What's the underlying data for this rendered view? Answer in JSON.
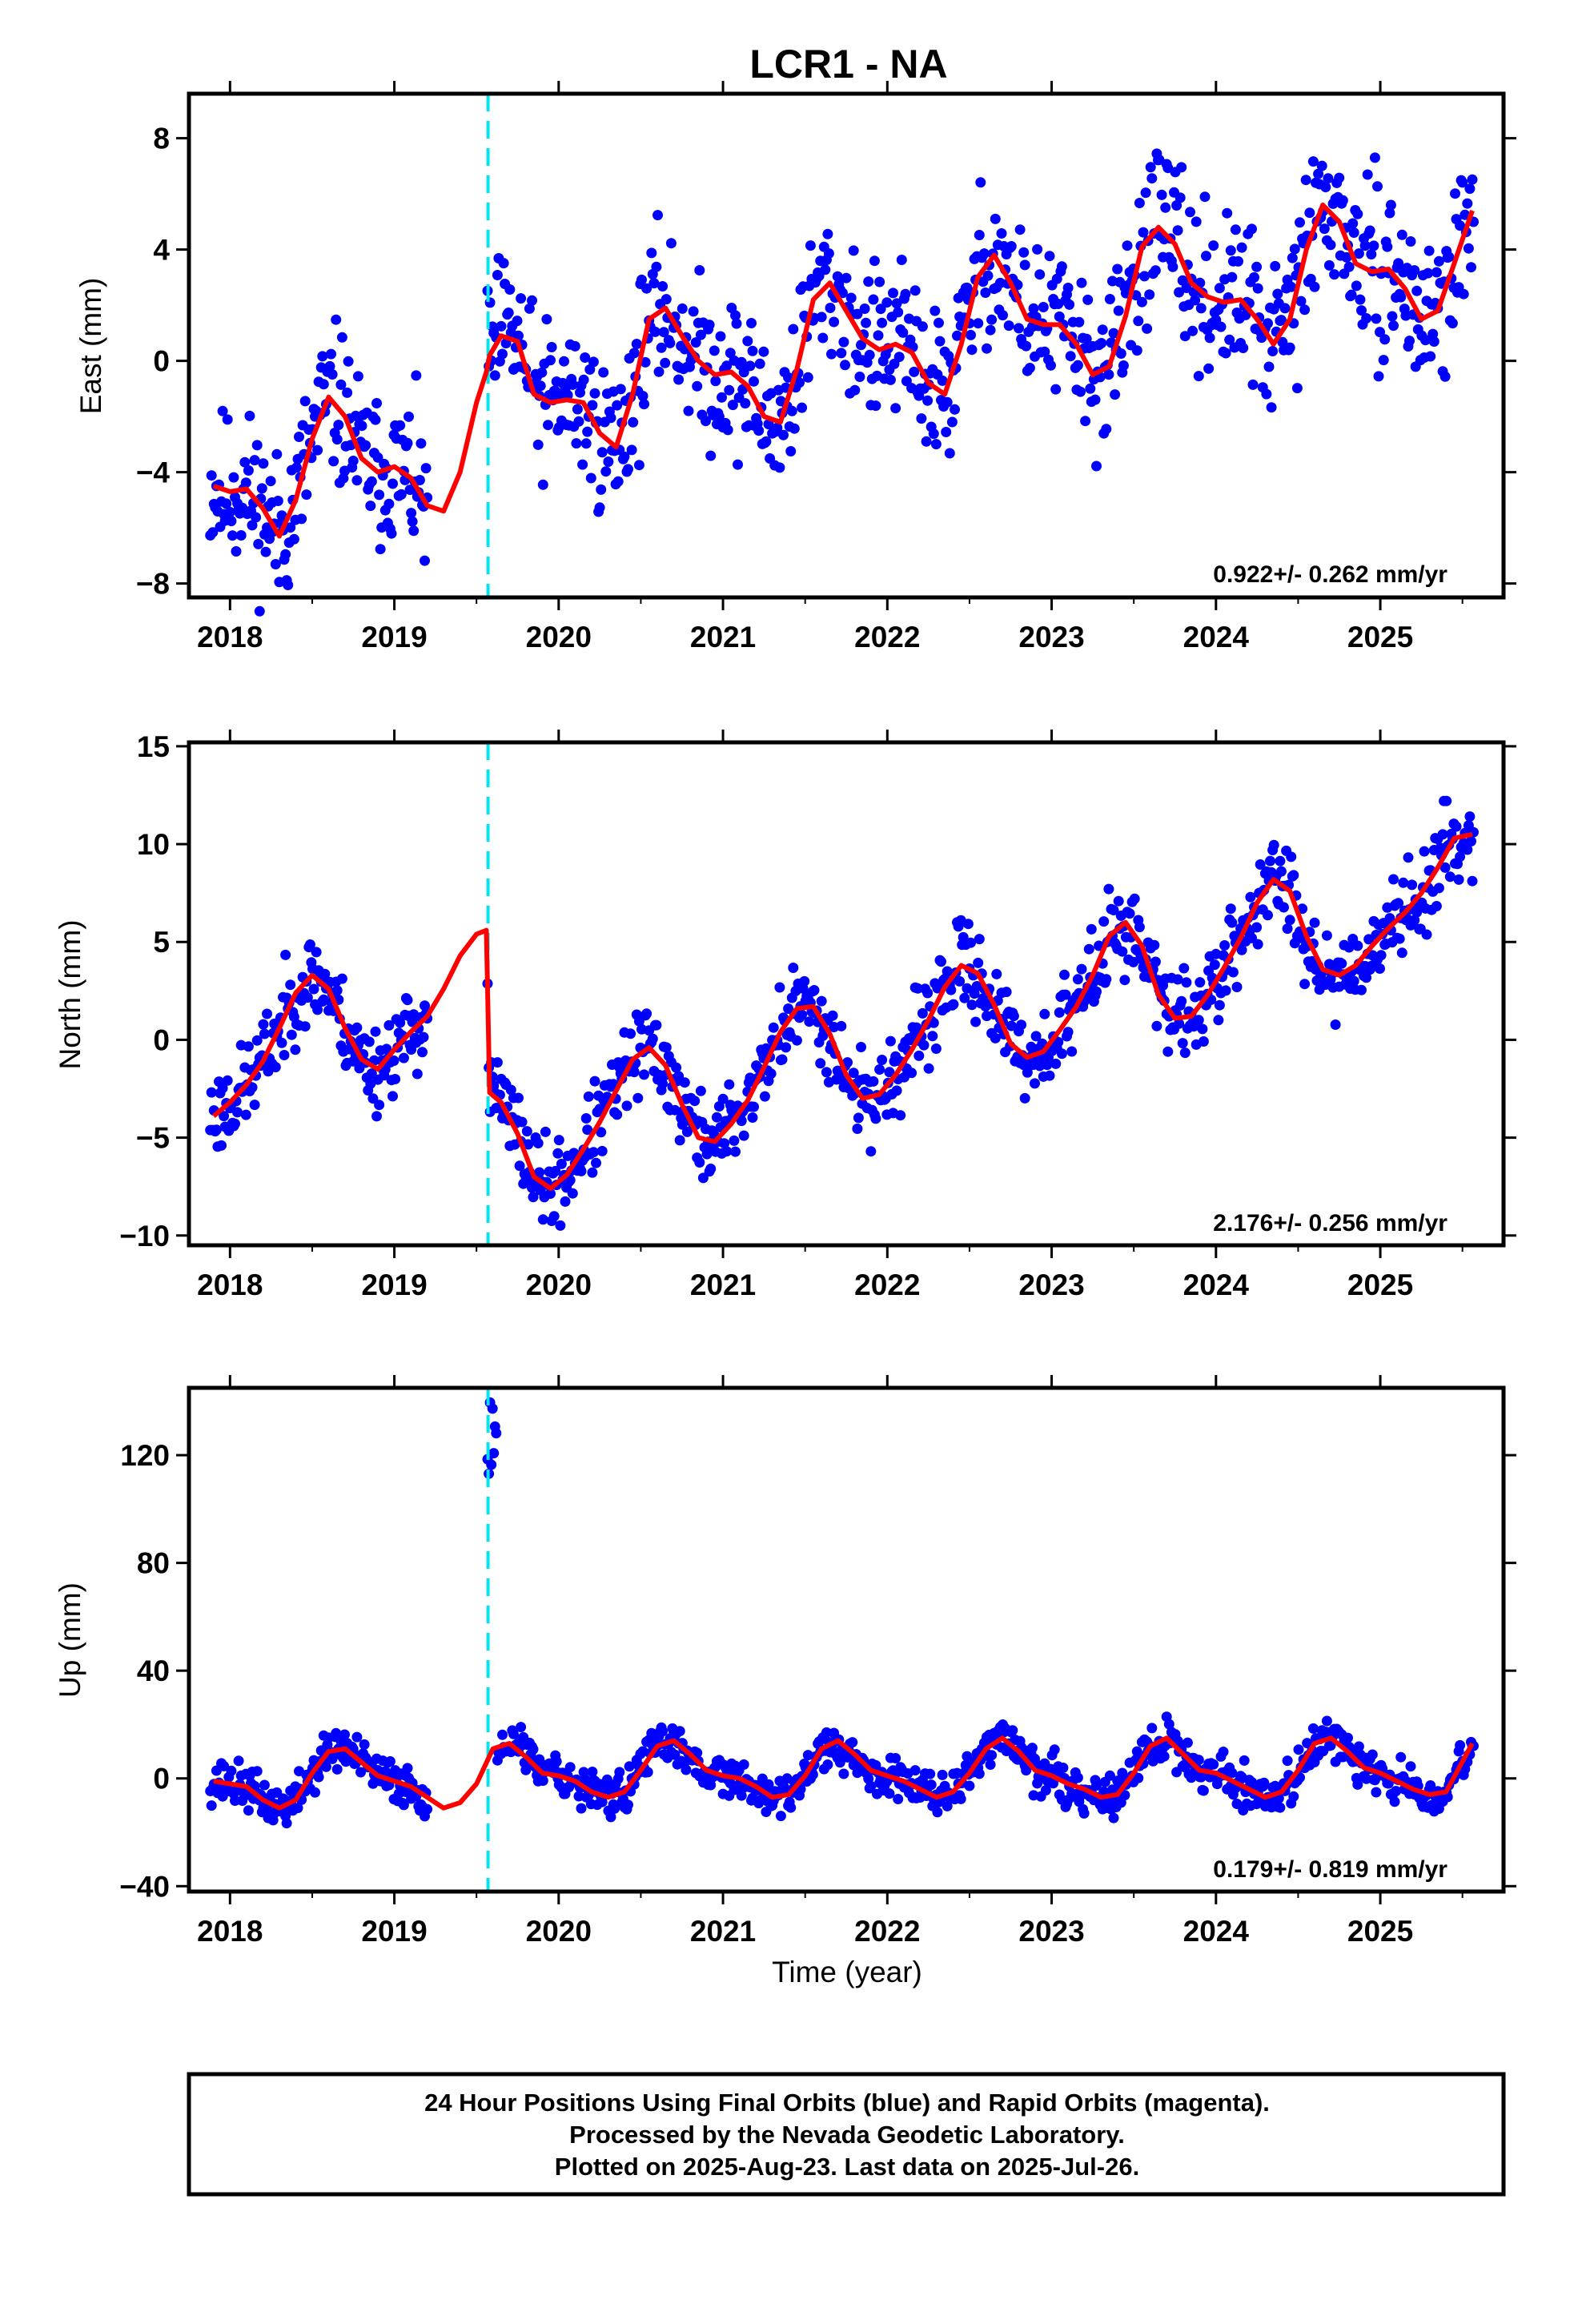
{
  "title": "LCR1 - NA",
  "xlabel": "Time (year)",
  "colors": {
    "points": "#0000ff",
    "fit": "#ff0000",
    "offset": "#00e5ee",
    "frame": "#000000"
  },
  "chart_data": [
    {
      "type": "scatter",
      "ylabel": "East (mm)",
      "rate": "0.922+/- 0.262 mm/yr",
      "xlim": [
        2017.75,
        2025.75
      ],
      "ylim": [
        -8.5,
        9.6
      ],
      "xticks": [
        "2018",
        "2019",
        "2020",
        "2021",
        "2022",
        "2023",
        "2024",
        "2025"
      ],
      "yticks": [
        "8",
        "4",
        "0",
        "−4",
        "−8"
      ],
      "offset_year": 2019.57,
      "fit": {
        "x": [
          2017.9,
          2018.0,
          2018.1,
          2018.2,
          2018.3,
          2018.4,
          2018.5,
          2018.6,
          2018.7,
          2018.8,
          2018.9,
          2019.0,
          2019.1,
          2019.2,
          2019.3,
          2019.4,
          2019.5,
          2019.56,
          2019.58,
          2019.65,
          2019.75,
          2019.85,
          2019.95,
          2020.05,
          2020.15,
          2020.25,
          2020.35,
          2020.45,
          2020.55,
          2020.65,
          2020.75,
          2020.85,
          2020.95,
          2021.05,
          2021.15,
          2021.25,
          2021.35,
          2021.45,
          2021.55,
          2021.65,
          2021.75,
          2021.85,
          2021.95,
          2022.05,
          2022.15,
          2022.25,
          2022.35,
          2022.45,
          2022.55,
          2022.65,
          2022.75,
          2022.85,
          2022.95,
          2023.05,
          2023.15,
          2023.25,
          2023.35,
          2023.45,
          2023.55,
          2023.65,
          2023.75,
          2023.85,
          2023.95,
          2024.05,
          2024.15,
          2024.25,
          2024.35,
          2024.45,
          2024.55,
          2024.65,
          2024.75,
          2024.85,
          2024.95,
          2025.05,
          2025.15,
          2025.25,
          2025.35,
          2025.45,
          2025.56
        ],
        "y": [
          -4.5,
          -4.7,
          -4.6,
          -5.3,
          -6.3,
          -5.0,
          -2.8,
          -1.3,
          -2.0,
          -3.5,
          -4.0,
          -3.8,
          -4.2,
          -5.2,
          -5.4,
          -4.0,
          -1.5,
          -0.4,
          0.2,
          0.9,
          0.7,
          -1.2,
          -1.5,
          -1.4,
          -1.5,
          -2.6,
          -3.1,
          -1.2,
          1.5,
          1.9,
          0.9,
          0.0,
          -0.5,
          -0.4,
          -0.9,
          -2.0,
          -2.2,
          -0.3,
          2.2,
          2.8,
          1.8,
          0.8,
          0.4,
          0.6,
          0.3,
          -0.8,
          -1.2,
          0.6,
          3.0,
          3.8,
          2.8,
          1.5,
          1.3,
          1.3,
          0.6,
          -0.5,
          -0.2,
          1.6,
          4.1,
          4.8,
          4.2,
          2.8,
          2.3,
          2.1,
          2.2,
          1.5,
          0.6,
          1.5,
          4.0,
          5.6,
          5.0,
          3.5,
          3.2,
          3.3,
          2.6,
          1.5,
          1.8,
          3.5,
          5.4
        ]
      }
    },
    {
      "type": "scatter",
      "ylabel": "North (mm)",
      "rate": "2.176+/- 0.256 mm/yr",
      "xlim": [
        2017.75,
        2025.75
      ],
      "ylim": [
        -10.5,
        15.2
      ],
      "xticks": [
        "2018",
        "2019",
        "2020",
        "2021",
        "2022",
        "2023",
        "2024",
        "2025"
      ],
      "yticks": [
        "15",
        "10",
        "5",
        "0",
        "−5",
        "−10"
      ],
      "offset_year": 2019.57,
      "fit": {
        "x": [
          2017.9,
          2018.0,
          2018.1,
          2018.2,
          2018.3,
          2018.4,
          2018.5,
          2018.6,
          2018.7,
          2018.8,
          2018.9,
          2019.0,
          2019.1,
          2019.2,
          2019.3,
          2019.4,
          2019.5,
          2019.56,
          2019.58,
          2019.65,
          2019.75,
          2019.85,
          2019.95,
          2020.05,
          2020.15,
          2020.25,
          2020.35,
          2020.45,
          2020.55,
          2020.65,
          2020.75,
          2020.85,
          2020.95,
          2021.05,
          2021.15,
          2021.25,
          2021.35,
          2021.45,
          2021.55,
          2021.65,
          2021.75,
          2021.85,
          2021.95,
          2022.05,
          2022.15,
          2022.25,
          2022.35,
          2022.45,
          2022.55,
          2022.65,
          2022.75,
          2022.85,
          2022.95,
          2023.05,
          2023.15,
          2023.25,
          2023.35,
          2023.45,
          2023.55,
          2023.65,
          2023.75,
          2023.85,
          2023.95,
          2024.05,
          2024.15,
          2024.25,
          2024.35,
          2024.45,
          2024.55,
          2024.65,
          2024.75,
          2024.85,
          2024.95,
          2025.05,
          2025.15,
          2025.25,
          2025.35,
          2025.45,
          2025.56
        ],
        "y": [
          -3.9,
          -3.2,
          -2.3,
          -1.1,
          0.6,
          2.4,
          3.3,
          2.6,
          0.6,
          -1.0,
          -1.5,
          -0.5,
          0.4,
          1.2,
          2.6,
          4.3,
          5.4,
          5.6,
          -2.7,
          -3.2,
          -4.8,
          -7.0,
          -7.6,
          -6.9,
          -5.6,
          -4.2,
          -2.6,
          -1.0,
          -0.4,
          -1.3,
          -3.3,
          -5.0,
          -5.2,
          -4.3,
          -3.1,
          -1.4,
          0.4,
          1.6,
          1.7,
          0.3,
          -1.8,
          -3.0,
          -2.8,
          -1.8,
          -0.5,
          1.0,
          2.7,
          3.8,
          3.4,
          1.8,
          -0.2,
          -0.9,
          -0.6,
          0.5,
          1.7,
          3.3,
          5.3,
          6.0,
          4.8,
          2.3,
          1.1,
          1.2,
          2.3,
          3.7,
          5.2,
          7.0,
          8.2,
          7.6,
          5.3,
          3.6,
          3.3,
          3.8,
          4.8,
          5.7,
          6.5,
          7.5,
          8.8,
          10.3,
          10.5
        ]
      }
    },
    {
      "type": "scatter",
      "ylabel": "Up (mm)",
      "rate": "0.179+/- 0.819 mm/yr",
      "xlim": [
        2017.75,
        2025.75
      ],
      "ylim": [
        -42,
        145
      ],
      "xticks": [
        "2018",
        "2019",
        "2020",
        "2021",
        "2022",
        "2023",
        "2024",
        "2025"
      ],
      "yticks": [
        "120",
        "80",
        "40",
        "0",
        "−40"
      ],
      "offset_year": 2019.57,
      "fit": {
        "x": [
          2017.9,
          2018.0,
          2018.1,
          2018.2,
          2018.3,
          2018.4,
          2018.5,
          2018.6,
          2018.7,
          2018.8,
          2018.9,
          2019.0,
          2019.1,
          2019.2,
          2019.3,
          2019.4,
          2019.5,
          2019.6,
          2019.7,
          2019.8,
          2019.9,
          2020.0,
          2020.1,
          2020.2,
          2020.3,
          2020.4,
          2020.5,
          2020.6,
          2020.7,
          2020.8,
          2020.9,
          2021.0,
          2021.1,
          2021.2,
          2021.3,
          2021.4,
          2021.5,
          2021.6,
          2021.7,
          2021.8,
          2021.9,
          2022.0,
          2022.1,
          2022.2,
          2022.3,
          2022.4,
          2022.5,
          2022.6,
          2022.7,
          2022.8,
          2022.9,
          2023.0,
          2023.1,
          2023.2,
          2023.3,
          2023.4,
          2023.5,
          2023.6,
          2023.7,
          2023.8,
          2023.9,
          2024.0,
          2024.1,
          2024.2,
          2024.3,
          2024.4,
          2024.5,
          2024.6,
          2024.7,
          2024.8,
          2024.9,
          2025.0,
          2025.1,
          2025.2,
          2025.3,
          2025.4,
          2025.56
        ],
        "y": [
          -1,
          -2,
          -3,
          -8,
          -11,
          -8,
          2,
          10,
          11,
          6,
          1,
          -1,
          -3,
          -7,
          -11,
          -9,
          -2,
          11,
          13,
          8,
          2,
          1,
          -1,
          -5,
          -7,
          -5,
          3,
          12,
          14,
          9,
          3,
          1,
          0,
          -3,
          -7,
          -6,
          1,
          11,
          14,
          9,
          3,
          1,
          -1,
          -4,
          -7,
          -5,
          2,
          11,
          15,
          10,
          3,
          1,
          -2,
          -4,
          -7,
          -6,
          2,
          12,
          15,
          9,
          3,
          2,
          -1,
          -4,
          -7,
          -5,
          3,
          13,
          15,
          10,
          4,
          2,
          -1,
          -4,
          -6,
          -5,
          13
        ]
      }
    }
  ],
  "footer": {
    "line1": "24 Hour Positions Using Final Orbits (blue) and Rapid Orbits (magenta).",
    "line2": "Processed by the Nevada Geodetic Laboratory.",
    "line3": "Plotted on 2025-Aug-23. Last data on 2025-Jul-26."
  }
}
